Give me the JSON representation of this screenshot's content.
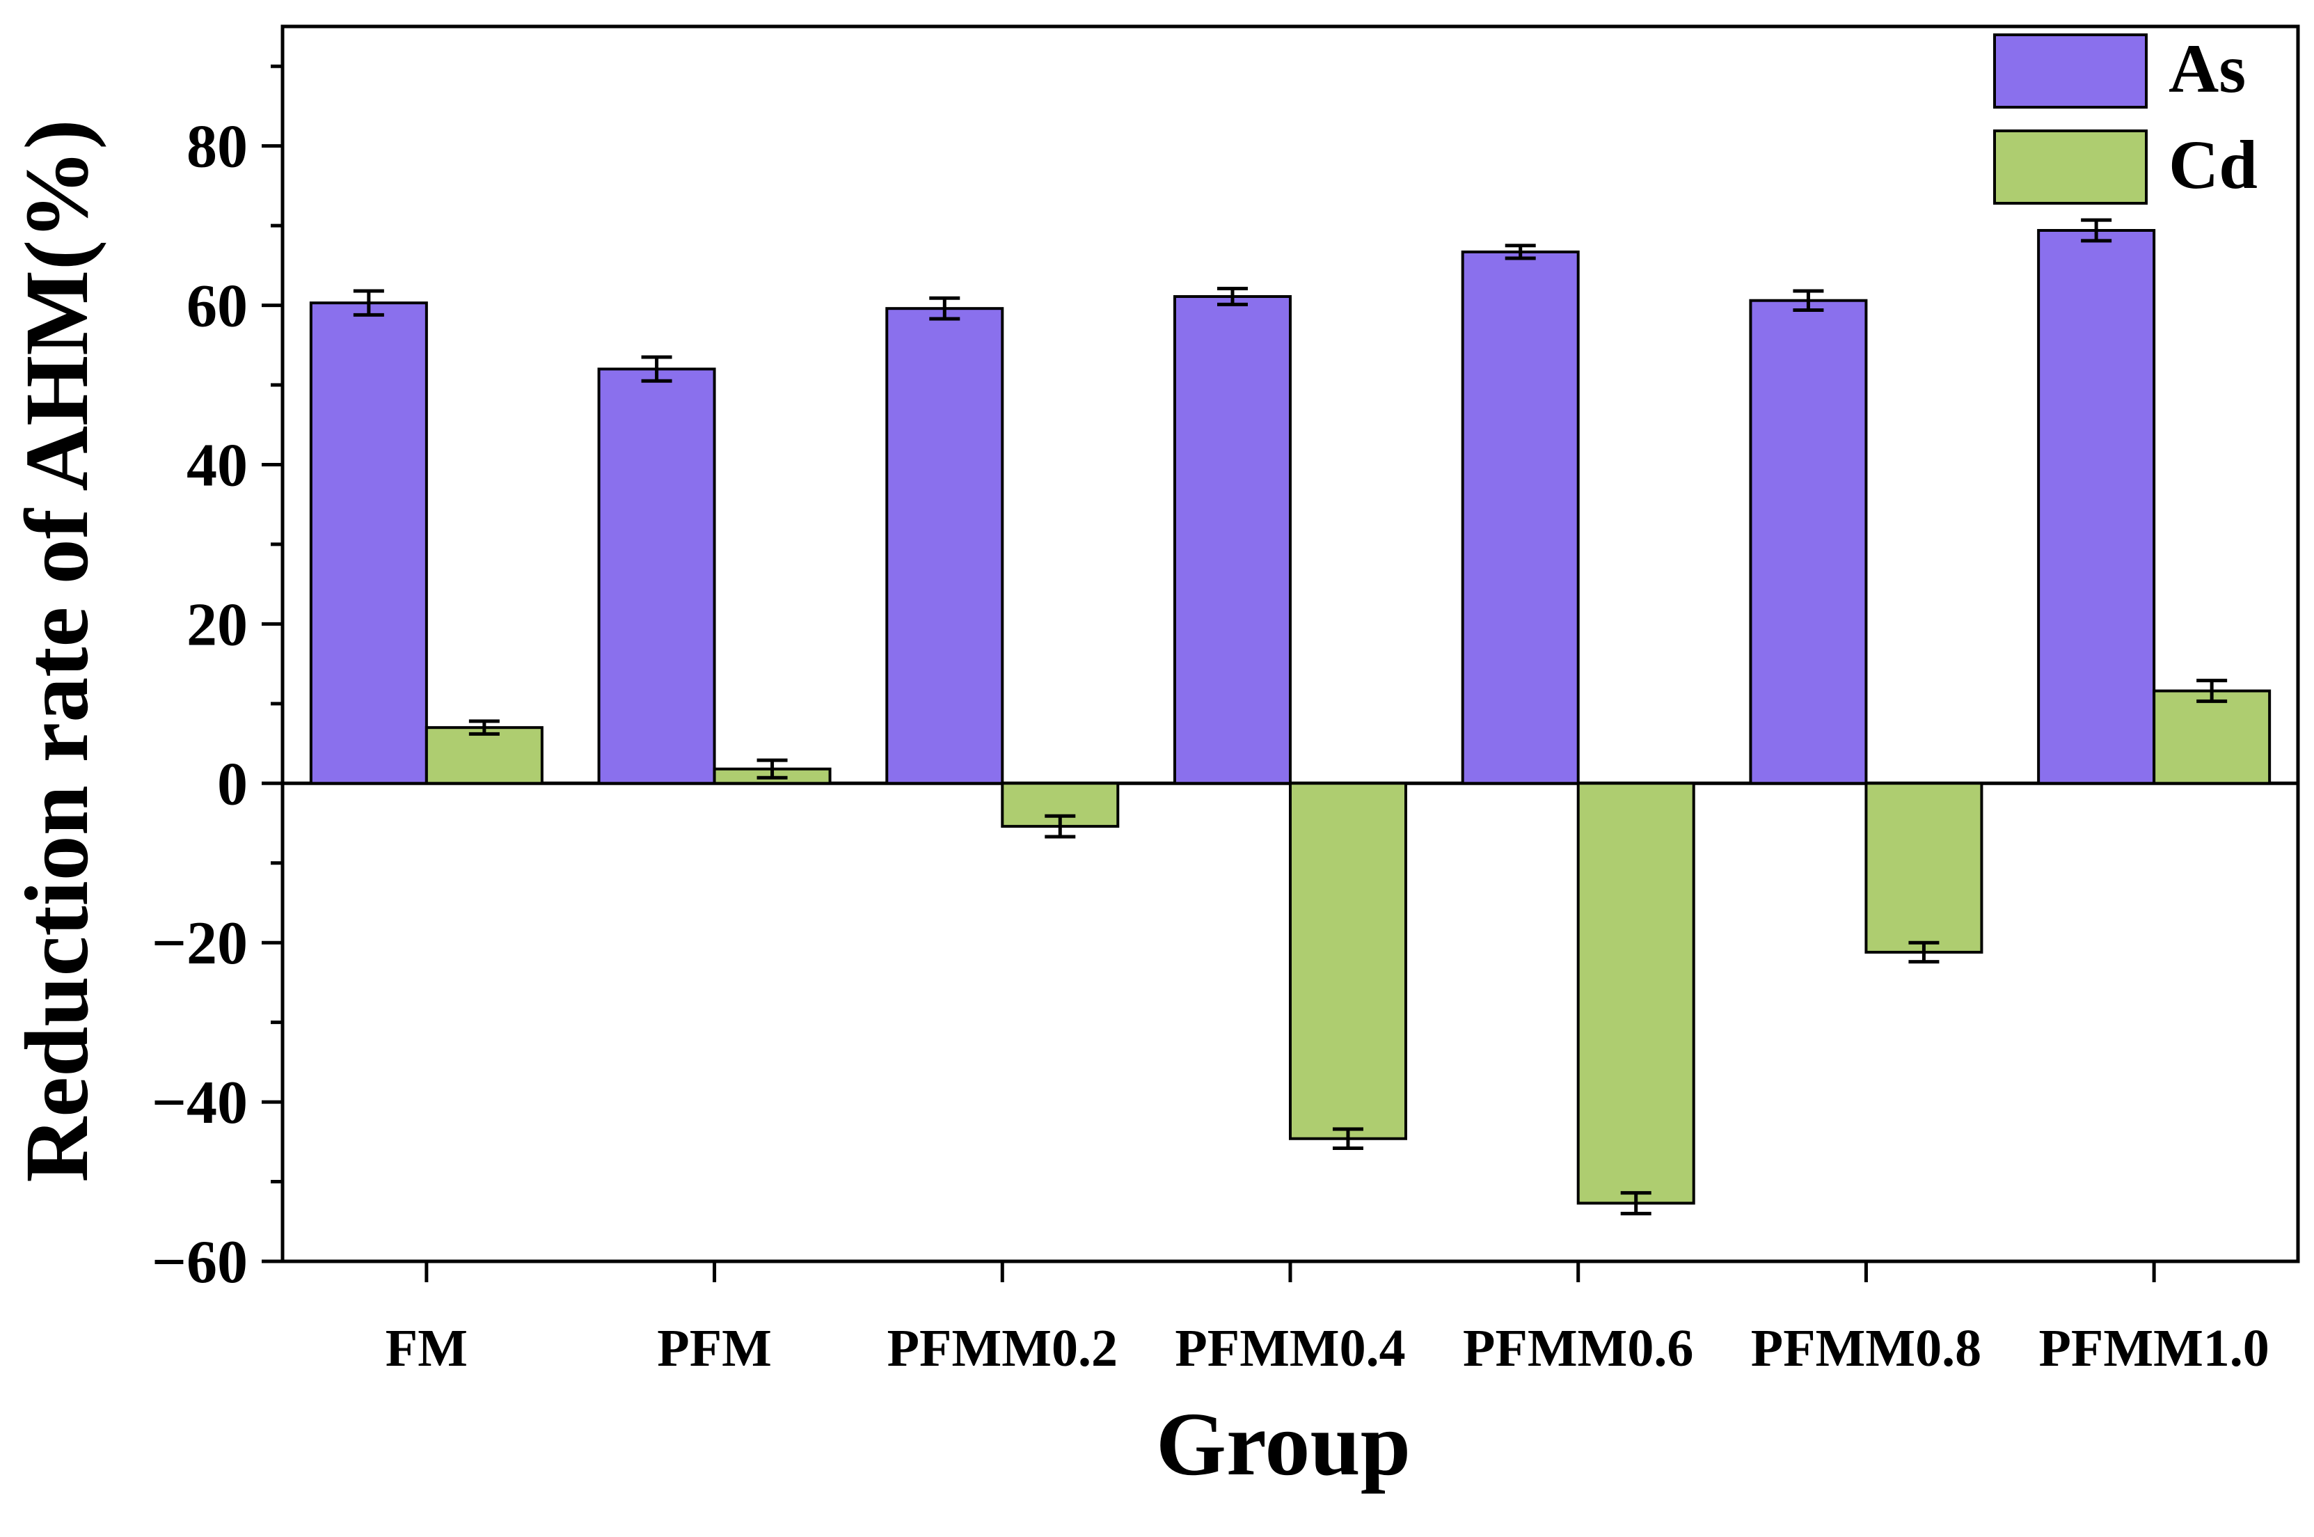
{
  "chart_data": {
    "type": "bar",
    "title": "",
    "xlabel": "Group",
    "ylabel": "Reduction rate of AHM(%)",
    "ylim": [
      -60,
      95
    ],
    "yticks": [
      "-60",
      "-40",
      "-20",
      "0",
      "20",
      "40",
      "60",
      "80"
    ],
    "grid": false,
    "legend_position": "top-right",
    "categories": [
      "FM",
      "PFM",
      "PFMM0.2",
      "PFMM0.4",
      "PFMM0.6",
      "PFMM0.8",
      "PFMM1.0"
    ],
    "series": [
      {
        "name": "As",
        "color": "#8a70ed",
        "values": [
          60.3,
          52.0,
          59.6,
          61.1,
          66.7,
          60.6,
          69.4
        ],
        "errors": [
          1.5,
          1.5,
          1.3,
          1.0,
          0.8,
          1.2,
          1.3
        ]
      },
      {
        "name": "Cd",
        "color": "#aecd70",
        "values": [
          7.0,
          1.8,
          -5.4,
          -44.6,
          -52.7,
          -21.2,
          11.6
        ],
        "errors": [
          0.8,
          1.1,
          1.3,
          1.2,
          1.3,
          1.2,
          1.3
        ]
      }
    ]
  }
}
